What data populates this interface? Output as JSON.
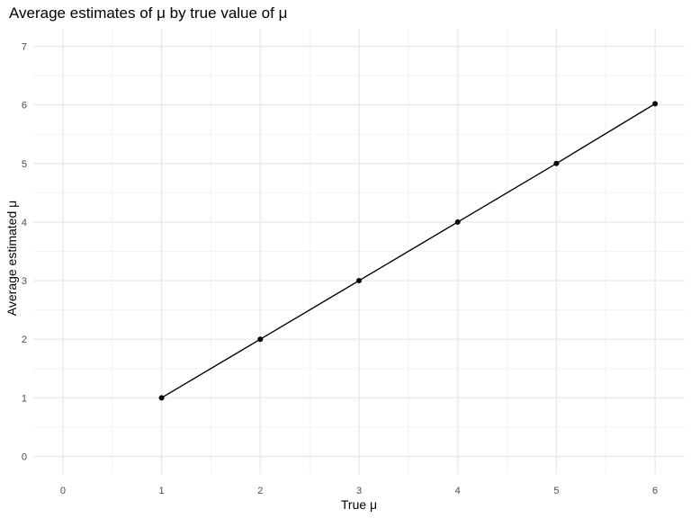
{
  "chart_data": {
    "type": "line",
    "title": "Average estimates of μ by true value of μ",
    "xlabel": "True μ",
    "ylabel": "Average estimated μ",
    "xlim": [
      -0.3,
      6.3
    ],
    "ylim": [
      -0.3,
      7.3
    ],
    "x_ticks": [
      0,
      1,
      2,
      3,
      4,
      5,
      6
    ],
    "y_ticks": [
      0,
      1,
      2,
      3,
      4,
      5,
      6,
      7
    ],
    "grid": true,
    "markers": true,
    "series": [
      {
        "x": [
          1,
          2,
          3,
          4,
          5,
          6
        ],
        "y": [
          1.0,
          2.0,
          3.0,
          4.0,
          5.0,
          6.02
        ]
      }
    ],
    "colors": {
      "line": "#000000",
      "point": "#000000",
      "grid_major": "#ebebeb",
      "grid_minor": "#f3f3f3",
      "tick_text": "#4d4d4d"
    }
  }
}
